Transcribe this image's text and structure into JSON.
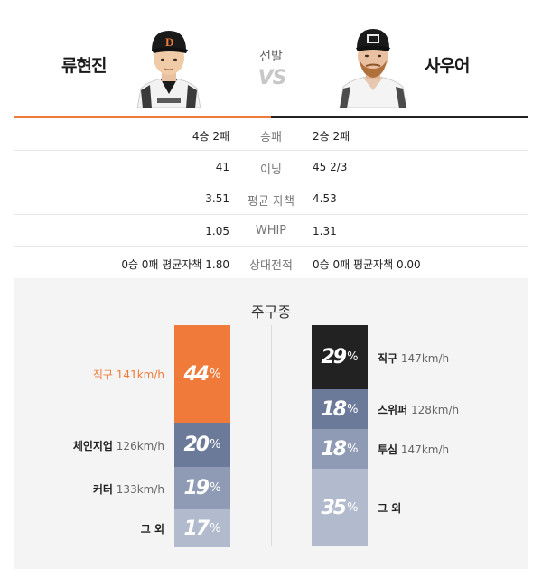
{
  "matchup": {
    "left_pitcher": {
      "name": "류현진"
    },
    "right_pitcher": {
      "name": "사우어"
    },
    "start_label": "선발",
    "vs_label": "VS"
  },
  "stats": [
    {
      "label": "승패",
      "left": "4승 2패",
      "right": "2승 2패"
    },
    {
      "label": "이닝",
      "left": "41",
      "right": "45 2/3"
    },
    {
      "label": "평균 자책",
      "left": "3.51",
      "right": "4.53"
    },
    {
      "label": "WHIP",
      "left": "1.05",
      "right": "1.31"
    },
    {
      "label": "상대전적",
      "left": "0승 0패 평균자책 1.80",
      "right": "0승 0패 평균자책 0.00"
    }
  ],
  "pitches": {
    "title": "주구종",
    "left": [
      {
        "name": "직구",
        "speed": "141km/h",
        "pct": "44",
        "unit": "%",
        "color": "#ef7a3a",
        "highlight": true
      },
      {
        "name": "체인지업",
        "speed": "126km/h",
        "pct": "20",
        "unit": "%",
        "color": "#6b7a99",
        "highlight": false
      },
      {
        "name": "커터",
        "speed": "133km/h",
        "pct": "19",
        "unit": "%",
        "color": "#8f9bb4",
        "highlight": false
      },
      {
        "name": "그 외",
        "speed": "",
        "pct": "17",
        "unit": "%",
        "color": "#b2bbcd",
        "highlight": false
      }
    ],
    "right": [
      {
        "name": "직구",
        "speed": "147km/h",
        "pct": "29",
        "unit": "%",
        "color": "#222222",
        "highlight": false
      },
      {
        "name": "스위퍼",
        "speed": "128km/h",
        "pct": "18",
        "unit": "%",
        "color": "#6b7a99",
        "highlight": false
      },
      {
        "name": "투심",
        "speed": "147km/h",
        "pct": "18",
        "unit": "%",
        "color": "#8f9bb4",
        "highlight": false
      },
      {
        "name": "그 외",
        "speed": "",
        "pct": "35",
        "unit": "%",
        "color": "#b2bbcd",
        "highlight": false
      }
    ]
  },
  "colors": {
    "left_accent": "#ef7a3a",
    "right_accent": "#222222"
  }
}
